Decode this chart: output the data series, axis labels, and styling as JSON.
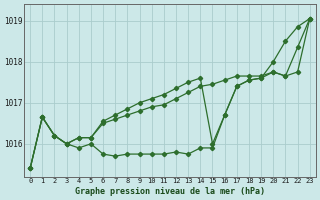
{
  "title": "Graphe pression niveau de la mer (hPa)",
  "background_color": "#cce8e8",
  "grid_color": "#aacccc",
  "line_color": "#2d6e2d",
  "x_labels": [
    "0",
    "1",
    "2",
    "3",
    "4",
    "5",
    "6",
    "7",
    "8",
    "9",
    "10",
    "11",
    "12",
    "13",
    "14",
    "15",
    "16",
    "17",
    "18",
    "19",
    "20",
    "21",
    "22",
    "23"
  ],
  "ylim": [
    1015.2,
    1019.4
  ],
  "yticks": [
    1016,
    1017,
    1018,
    1019
  ],
  "y_line1": [
    1015.4,
    1016.65,
    1016.2,
    1016.0,
    1015.9,
    1016.0,
    1015.75,
    1015.7,
    1015.75,
    1015.75,
    1015.75,
    1015.75,
    1015.8,
    1015.75,
    1015.9,
    1015.9,
    1016.7,
    1017.4,
    1017.55,
    1017.6,
    1018.0,
    1018.5,
    1018.85,
    1019.05
  ],
  "y_line2": [
    1015.4,
    1016.65,
    1016.2,
    1016.0,
    1016.15,
    1016.15,
    1016.55,
    1016.7,
    1016.85,
    1017.0,
    1017.1,
    1017.2,
    1017.35,
    1017.5,
    1017.6,
    1016.0,
    1016.7,
    1017.4,
    1017.55,
    1017.6,
    1017.75,
    1017.65,
    1018.35,
    1019.05
  ],
  "y_line3": [
    1015.4,
    1016.65,
    1016.2,
    1016.0,
    1016.15,
    1016.15,
    1016.5,
    1016.6,
    1016.7,
    1016.8,
    1016.9,
    1016.95,
    1017.1,
    1017.25,
    1017.4,
    1017.45,
    1017.55,
    1017.65,
    1017.65,
    1017.65,
    1017.75,
    1017.65,
    1017.75,
    1019.05
  ]
}
